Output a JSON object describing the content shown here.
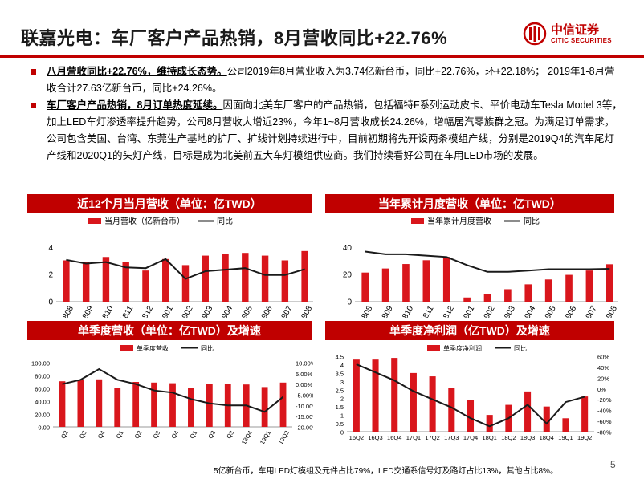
{
  "title": "联嘉光电：车厂客户产品热销，8月营收同比+22.76%",
  "logo": {
    "cn": "中信证券",
    "en": "CITIC SECURITIES",
    "icon": "citic-logo-icon"
  },
  "bullets": [
    {
      "highlight": "八月营收同比+22.76%，维持成长态势。",
      "text": "公司2019年8月营业收入为3.74亿新台币，同比+22.76%，环+22.18%； 2019年1-8月营收合计27.63亿新台币，同比+24.26%。"
    },
    {
      "highlight": "车厂客户产品热销，8月订单热度延续。",
      "text": "因面向北美车厂客户的产品热销，包括福特F系列运动皮卡、平价电动车Tesla Model 3等，加上LED车灯渗透率提升趋势，公司8月营收大增近23%，今年1~8月营收成长24.26%，增幅居汽零族群之冠。为满足订单需求，公司包含美国、台湾、东莞生产基地的扩厂、扩线计划持续进行中，目前初期将先开设两条模组产线，分别是2019Q4的汽车尾灯产线和2020Q1的头灯产线，目标是成为北美前五大车灯模组供应商。我们持续看好公司在车用LED市场的发展。"
    }
  ],
  "banners": {
    "c1": "近12个月当月营收（单位：亿TWD）",
    "c2": "当年累计月度营收（单位：亿TWD）",
    "c3": "单季度营收（单位：亿TWD）及增速",
    "c4": "单季度净利润（亿TWD）及增速"
  },
  "footnote": "5亿新台币，车用LED灯模组及元件占比79%，LED交通系信号灯及路灯占比13%，其他占比8%。",
  "page_number": "5",
  "colors": {
    "accent": "#c00000",
    "bar": "#d9161c",
    "line": "#1a1a1a"
  },
  "chart_data": [
    {
      "type": "bar",
      "legend": [
        "当月营收（亿新台币）",
        "同比"
      ],
      "categories": [
        "201808",
        "201809",
        "201810",
        "201811",
        "201812",
        "201901",
        "201902",
        "201903",
        "201904",
        "201905",
        "201906",
        "201907",
        "201908"
      ],
      "series": [
        {
          "name": "当月营收（亿新台币）",
          "axis": "left",
          "values": [
            3.05,
            2.95,
            3.3,
            2.95,
            2.3,
            3.15,
            2.7,
            3.4,
            3.55,
            3.6,
            3.4,
            3.05,
            3.74
          ]
        },
        {
          "name": "同比",
          "axis": "right",
          "type": "line",
          "values": [
            35,
            30,
            32,
            25,
            24,
            36,
            10,
            20,
            22,
            24,
            15,
            15,
            22.76
          ]
        }
      ],
      "y_left": {
        "ticks": [
          "0",
          "2",
          "4"
        ],
        "lim": [
          0,
          4.5
        ]
      },
      "y_right": {
        "ticks": [
          "-20%",
          "0%",
          "20%",
          "40%",
          "60%"
        ],
        "lim": [
          -20,
          60
        ]
      }
    },
    {
      "type": "bar",
      "legend": [
        "当年累计月度营收",
        "同比"
      ],
      "categories": [
        "201808",
        "201809",
        "201810",
        "201811",
        "201812",
        "201901",
        "201902",
        "201903",
        "201904",
        "201905",
        "201906",
        "201907",
        "201908"
      ],
      "series": [
        {
          "name": "当年累计月度营收",
          "axis": "left",
          "values": [
            21.5,
            24.5,
            27.8,
            30.6,
            33,
            3.1,
            5.8,
            9.2,
            12.8,
            16.4,
            19.8,
            23,
            27.63
          ]
        },
        {
          "name": "同比",
          "axis": "right",
          "type": "line",
          "values": [
            37,
            35,
            35,
            34,
            33,
            27,
            22,
            22,
            23,
            24,
            24,
            24,
            24.26
          ]
        }
      ],
      "y_left": {
        "ticks": [
          "0",
          "20",
          "40"
        ],
        "lim": [
          0,
          45
        ]
      },
      "y_right": {
        "ticks": [
          "0%",
          "20%",
          "40%"
        ],
        "lim": [
          0,
          45
        ]
      }
    },
    {
      "type": "bar",
      "legend": [
        "单季度营收",
        "同比"
      ],
      "categories": [
        "16Q2",
        "16Q3",
        "16Q4",
        "17Q1",
        "17Q2",
        "17Q3",
        "17Q4",
        "18Q1",
        "18Q2",
        "18Q3",
        "18Q4",
        "19Q1",
        "19Q2"
      ],
      "visible_categories": [
        "Q2",
        "Q3",
        "Q4",
        "Q1",
        "Q2",
        "Q3",
        "Q4",
        "Q1",
        "Q2",
        "Q3",
        "18Q4",
        "19Q1",
        "19Q2"
      ],
      "series": [
        {
          "name": "单季度营收",
          "axis": "left",
          "values": [
            71,
            73,
            74,
            60,
            70,
            69,
            68,
            60,
            67,
            67,
            66,
            62,
            69
          ]
        },
        {
          "name": "同比",
          "axis": "right",
          "type": "line",
          "values": [
            0,
            2,
            7,
            2,
            0,
            -3,
            -4,
            -7,
            -9,
            -10,
            -10,
            -13,
            -6
          ]
        }
      ],
      "y_left": {
        "ticks": [
          "0.00",
          "20.00",
          "40.00",
          "60.00",
          "80.00",
          "100.00"
        ],
        "lim": [
          0,
          100
        ]
      },
      "y_right": {
        "ticks": [
          "-20.00%",
          "-15.00%",
          "-10.00%",
          "-5.00%",
          "0.00%",
          "5.00%",
          "10.00%"
        ],
        "lim": [
          -20,
          10
        ]
      }
    },
    {
      "type": "bar",
      "legend": [
        "单季度净利润",
        "同比"
      ],
      "categories": [
        "16Q2",
        "16Q3",
        "16Q4",
        "17Q1",
        "17Q2",
        "17Q3",
        "17Q4",
        "18Q1",
        "18Q2",
        "18Q3",
        "18Q4",
        "19Q1",
        "19Q2"
      ],
      "series": [
        {
          "name": "单季度净利润",
          "axis": "left",
          "values": [
            4.3,
            4.3,
            4.4,
            3.5,
            3.3,
            2.6,
            1.9,
            1.0,
            1.6,
            2.4,
            1.5,
            0.8,
            2.1
          ]
        },
        {
          "name": "同比",
          "axis": "right",
          "type": "line",
          "values": [
            45,
            30,
            15,
            -5,
            -20,
            -35,
            -55,
            -70,
            -55,
            -30,
            -65,
            -25,
            -15
          ]
        }
      ],
      "y_left": {
        "ticks": [
          "0",
          "0.5",
          "1",
          "1.5",
          "2",
          "2.5",
          "3",
          "3.5",
          "4",
          "4.5"
        ],
        "lim": [
          0,
          4.5
        ]
      },
      "y_right": {
        "ticks": [
          "-80%",
          "-60%",
          "-40%",
          "-20%",
          "0%",
          "20%",
          "40%",
          "60%"
        ],
        "lim": [
          -80,
          60
        ]
      }
    }
  ]
}
